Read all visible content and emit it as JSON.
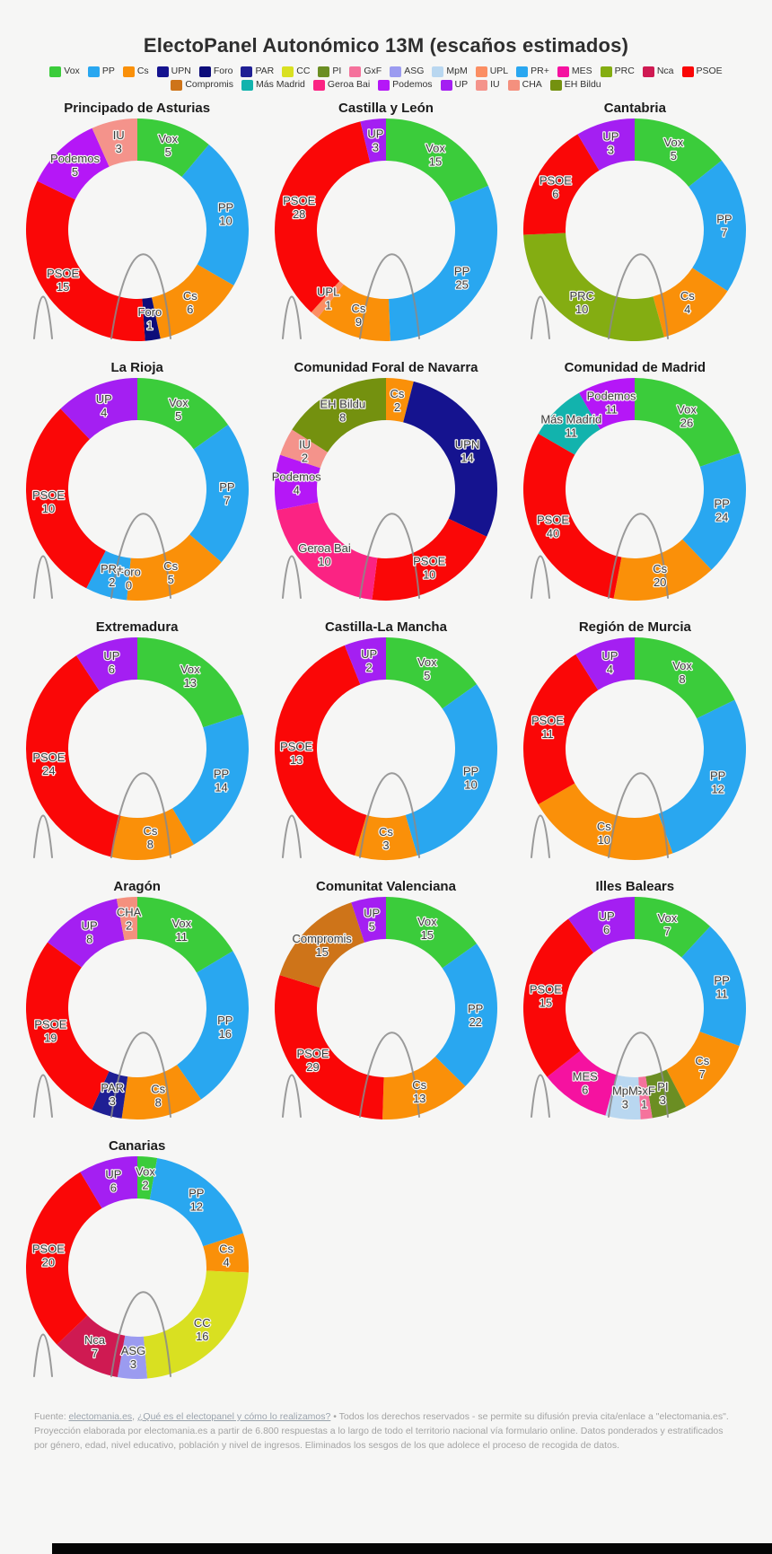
{
  "page": {
    "title": "ElectoPanel Autonómico 13M (escaños estimados)"
  },
  "legend": {
    "row1": [
      "Vox",
      "PP",
      "Cs",
      "UPN",
      "Foro",
      "PAR",
      "CC",
      "PI",
      "GxF",
      "ASG",
      "MpM",
      "UPL",
      "PR+",
      "MES",
      "PRC",
      "Nca",
      "PSOE"
    ],
    "row2": [
      "Compromis",
      "Más Madrid",
      "Geroa Bai",
      "Podemos",
      "UP",
      "IU",
      "CHA",
      "EH Bildu"
    ]
  },
  "party_colors": {
    "Vox": "#3bcc3b",
    "PP": "#29a7f0",
    "Cs": "#fa9009",
    "UPN": "#15138f",
    "Foro": "#0d0d7a",
    "PAR": "#1f1f94",
    "CC": "#d9e021",
    "PI": "#6b8e23",
    "GxF": "#f5729c",
    "ASG": "#9b9bf0",
    "MpM": "#b9d7f0",
    "UPL": "#fb8e63",
    "PR+": "#2aa7f0",
    "MES": "#f512a0",
    "PRC": "#84ad12",
    "Nca": "#cf1a52",
    "PSOE": "#fa0707",
    "Compromis": "#ce7419",
    "Más Madrid": "#12b3ad",
    "Geroa Bai": "#fb2383",
    "Podemos": "#b517f7",
    "UP": "#a41ff2",
    "IU": "#f4938b",
    "CHA": "#f4907e",
    "EH Bildu": "#74910f"
  },
  "chart_data": [
    {
      "type": "pie",
      "donut": true,
      "start": "top",
      "direction": "clockwise",
      "region": "Principado de Asturias",
      "total": 45,
      "segments": [
        {
          "party": "Vox",
          "seats": 5
        },
        {
          "party": "PP",
          "seats": 10
        },
        {
          "party": "Cs",
          "seats": 6
        },
        {
          "party": "Foro",
          "seats": 1
        },
        {
          "party": "PSOE",
          "seats": 15
        },
        {
          "party": "Podemos",
          "seats": 5
        },
        {
          "party": "IU",
          "seats": 3
        }
      ]
    },
    {
      "type": "pie",
      "donut": true,
      "start": "top",
      "direction": "clockwise",
      "region": "Castilla y León",
      "total": 81,
      "segments": [
        {
          "party": "Vox",
          "seats": 15
        },
        {
          "party": "PP",
          "seats": 25
        },
        {
          "party": "Cs",
          "seats": 9
        },
        {
          "party": "UPL",
          "seats": 1
        },
        {
          "party": "PSOE",
          "seats": 28
        },
        {
          "party": "UP",
          "seats": 3
        }
      ]
    },
    {
      "type": "pie",
      "donut": true,
      "start": "top",
      "direction": "clockwise",
      "region": "Cantabria",
      "total": 35,
      "segments": [
        {
          "party": "Vox",
          "seats": 5
        },
        {
          "party": "PP",
          "seats": 7
        },
        {
          "party": "Cs",
          "seats": 4
        },
        {
          "party": "PRC",
          "seats": 10
        },
        {
          "party": "PSOE",
          "seats": 6
        },
        {
          "party": "UP",
          "seats": 3
        }
      ]
    },
    {
      "type": "pie",
      "donut": true,
      "start": "top",
      "direction": "clockwise",
      "region": "La Rioja",
      "total": 33,
      "segments": [
        {
          "party": "Vox",
          "seats": 5
        },
        {
          "party": "PP",
          "seats": 7
        },
        {
          "party": "Cs",
          "seats": 5
        },
        {
          "party": "Foro",
          "seats": 0
        },
        {
          "party": "PR+",
          "seats": 2
        },
        {
          "party": "PSOE",
          "seats": 10
        },
        {
          "party": "UP",
          "seats": 4
        }
      ]
    },
    {
      "type": "pie",
      "donut": true,
      "start": "top",
      "direction": "clockwise",
      "region": "Comunidad Foral de Navarra",
      "total": 50,
      "segments": [
        {
          "party": "Cs",
          "seats": 2
        },
        {
          "party": "UPN",
          "seats": 14
        },
        {
          "party": "PSOE",
          "seats": 10
        },
        {
          "party": "Geroa Bai",
          "seats": 10
        },
        {
          "party": "Podemos",
          "seats": 4
        },
        {
          "party": "IU",
          "seats": 2
        },
        {
          "party": "EH Bildu",
          "seats": 8
        }
      ]
    },
    {
      "type": "pie",
      "donut": true,
      "start": "top",
      "direction": "clockwise",
      "region": "Comunidad de Madrid",
      "total": 132,
      "segments": [
        {
          "party": "Vox",
          "seats": 26
        },
        {
          "party": "PP",
          "seats": 24
        },
        {
          "party": "Cs",
          "seats": 20
        },
        {
          "party": "PSOE",
          "seats": 40
        },
        {
          "party": "Más Madrid",
          "seats": 11
        },
        {
          "party": "Podemos",
          "seats": 11
        }
      ]
    },
    {
      "type": "pie",
      "donut": true,
      "start": "top",
      "direction": "clockwise",
      "region": "Extremadura",
      "total": 65,
      "segments": [
        {
          "party": "Vox",
          "seats": 13
        },
        {
          "party": "PP",
          "seats": 14
        },
        {
          "party": "Cs",
          "seats": 8
        },
        {
          "party": "PSOE",
          "seats": 24
        },
        {
          "party": "UP",
          "seats": 6
        }
      ]
    },
    {
      "type": "pie",
      "donut": true,
      "start": "top",
      "direction": "clockwise",
      "region": "Castilla-La Mancha",
      "total": 33,
      "segments": [
        {
          "party": "Vox",
          "seats": 5
        },
        {
          "party": "PP",
          "seats": 10
        },
        {
          "party": "Cs",
          "seats": 3
        },
        {
          "party": "PSOE",
          "seats": 13
        },
        {
          "party": "UP",
          "seats": 2
        }
      ]
    },
    {
      "type": "pie",
      "donut": true,
      "start": "top",
      "direction": "clockwise",
      "region": "Región de Murcia",
      "total": 45,
      "segments": [
        {
          "party": "Vox",
          "seats": 8
        },
        {
          "party": "PP",
          "seats": 12
        },
        {
          "party": "Cs",
          "seats": 10
        },
        {
          "party": "PSOE",
          "seats": 11
        },
        {
          "party": "UP",
          "seats": 4
        }
      ]
    },
    {
      "type": "pie",
      "donut": true,
      "start": "top",
      "direction": "clockwise",
      "region": "Aragón",
      "total": 67,
      "segments": [
        {
          "party": "Vox",
          "seats": 11
        },
        {
          "party": "PP",
          "seats": 16
        },
        {
          "party": "Cs",
          "seats": 8
        },
        {
          "party": "PAR",
          "seats": 3
        },
        {
          "party": "PSOE",
          "seats": 19
        },
        {
          "party": "UP",
          "seats": 8
        },
        {
          "party": "CHA",
          "seats": 2
        }
      ]
    },
    {
      "type": "pie",
      "donut": true,
      "start": "top",
      "direction": "clockwise",
      "region": "Comunitat Valenciana",
      "total": 99,
      "segments": [
        {
          "party": "Vox",
          "seats": 15
        },
        {
          "party": "PP",
          "seats": 22
        },
        {
          "party": "Cs",
          "seats": 13
        },
        {
          "party": "PSOE",
          "seats": 29
        },
        {
          "party": "Compromis",
          "seats": 15
        },
        {
          "party": "UP",
          "seats": 5
        }
      ]
    },
    {
      "type": "pie",
      "donut": true,
      "start": "top",
      "direction": "clockwise",
      "region": "Illes Balears",
      "total": 59,
      "segments": [
        {
          "party": "Vox",
          "seats": 7
        },
        {
          "party": "PP",
          "seats": 11
        },
        {
          "party": "Cs",
          "seats": 7
        },
        {
          "party": "PI",
          "seats": 3
        },
        {
          "party": "GxF",
          "seats": 1
        },
        {
          "party": "MpM",
          "seats": 3
        },
        {
          "party": "MES",
          "seats": 6
        },
        {
          "party": "PSOE",
          "seats": 15
        },
        {
          "party": "UP",
          "seats": 6
        }
      ]
    },
    {
      "type": "pie",
      "donut": true,
      "start": "top",
      "direction": "clockwise",
      "region": "Canarias",
      "total": 70,
      "segments": [
        {
          "party": "Vox",
          "seats": 2
        },
        {
          "party": "PP",
          "seats": 12
        },
        {
          "party": "Cs",
          "seats": 4
        },
        {
          "party": "CC",
          "seats": 16
        },
        {
          "party": "ASG",
          "seats": 3
        },
        {
          "party": "Nca",
          "seats": 7
        },
        {
          "party": "PSOE",
          "seats": 20
        },
        {
          "party": "UP",
          "seats": 6
        }
      ]
    }
  ],
  "footer": {
    "prefix": "Fuente: ",
    "link1": "electomania.es",
    "sep1": ", ",
    "link2": "¿Qué es el electopanel y cómo lo realizamos?",
    "rest": " • Todos los derechos reservados - se permite su difusión previa cita/enlace a \"electomania.es\". Proyección elaborada por electomania.es a partir de 6.800 respuestas a lo largo de todo el territorio nacional vía formulario online. Datos ponderados y estratificados por género, edad, nivel educativo, población y nivel de ingresos. Eliminados los sesgos de los que adolece el proceso de recogida de datos."
  }
}
